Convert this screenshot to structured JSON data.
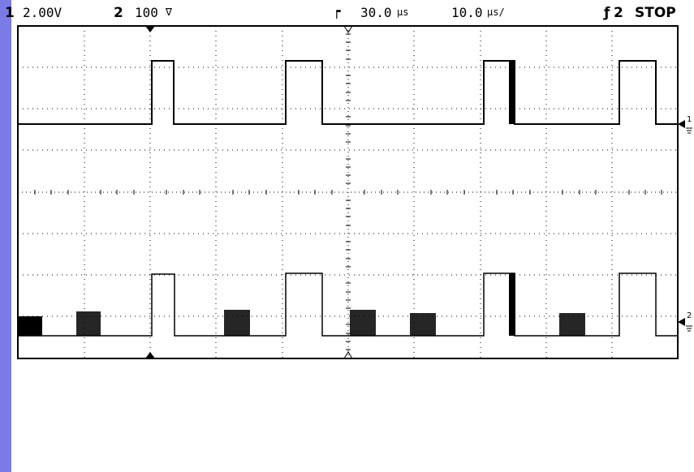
{
  "status": {
    "ch1_num": "1",
    "ch1_scale": "2.00V",
    "ch2_num": "2",
    "ch2_scale": "100",
    "ch2_unit_icon": "ac-coupling-v-icon",
    "timebase_delay": "30.0",
    "timebase_delay_unit_icon": "microseconds-icon",
    "timebase_scale": "10.0",
    "timebase_scale_unit_icon": "microseconds-per-div-icon",
    "trigger_source": "2",
    "trigger_slope_icon": "trigger-slope-icon",
    "run_state": "STOP"
  },
  "markers": {
    "ch1_label": "1",
    "ch2_label": "2"
  },
  "colors": {
    "side_bar": "#7b7be6",
    "trace": "#000000",
    "background": "#ffffff"
  }
}
